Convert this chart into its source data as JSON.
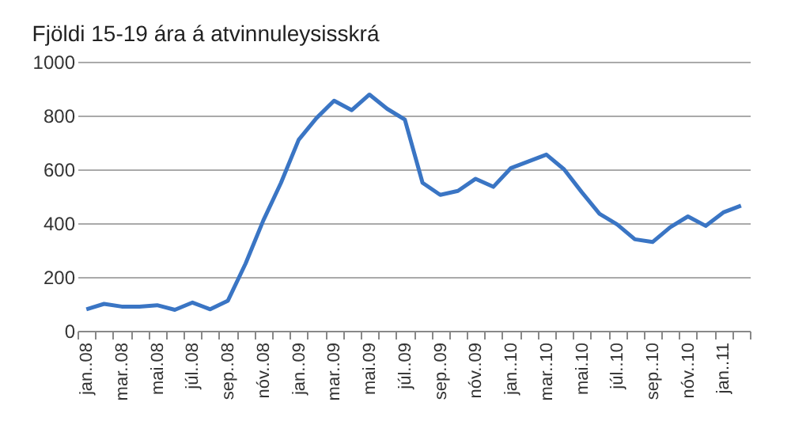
{
  "chart_data": {
    "type": "line",
    "title": "Fjöldi 15-19 ára á atvinnuleysisskrá",
    "categories": [
      "jan..08",
      null,
      "mar..08",
      null,
      "mai.08",
      null,
      "júl..08",
      null,
      "sep..08",
      null,
      "nóv..08",
      null,
      "jan..09",
      null,
      "mar..09",
      null,
      "mai.09",
      null,
      "júl..09",
      null,
      "sep..09",
      null,
      "nóv..09",
      null,
      "jan..10",
      null,
      "mar..10",
      null,
      "mai.10",
      null,
      "júl..10",
      null,
      "sep..10",
      null,
      "nóv..10",
      null,
      "jan..11",
      null
    ],
    "series": [
      {
        "color": "#3a75c4",
        "values": [
          80,
          100,
          90,
          90,
          95,
          78,
          105,
          80,
          112,
          250,
          410,
          550,
          710,
          790,
          855,
          820,
          878,
          825,
          785,
          550,
          505,
          520,
          565,
          535,
          605,
          630,
          655,
          600,
          515,
          435,
          395,
          340,
          330,
          385,
          425,
          390,
          440,
          465
        ]
      }
    ],
    "ylim": [
      0,
      1000
    ],
    "yticks": [
      0,
      200,
      400,
      600,
      800,
      1000
    ],
    "grid": "y",
    "legend": false
  }
}
